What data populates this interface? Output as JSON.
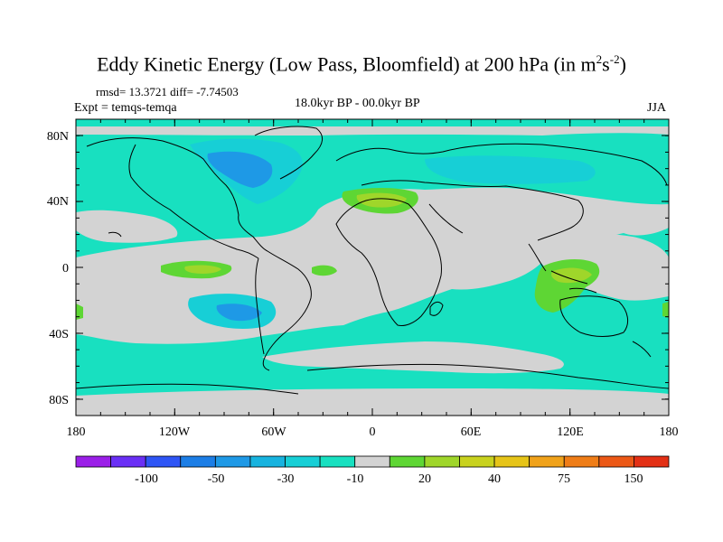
{
  "title": {
    "main": "Eddy Kinetic Energy (Low Pass, Bloomfield) at 200 hPa (in m",
    "sup1": "2",
    "mid": "s",
    "sup2": "-2",
    "end": ")"
  },
  "stats": "rmsd= 13.3721 diff= -7.74503",
  "experiment": "Expt = temqs-temqa",
  "period": "18.0kyr BP - 00.0kyr BP",
  "season": "JJA",
  "y_axis_labels": [
    "80N",
    "40N",
    "0",
    "40S",
    "80S"
  ],
  "x_axis_labels": [
    "180",
    "120W",
    "60W",
    "0",
    "60E",
    "120E",
    "180"
  ],
  "colorbar": {
    "colors": [
      "#9b1fe8",
      "#6a2ff5",
      "#2e55f5",
      "#1c7ee6",
      "#1e99e6",
      "#17b3df",
      "#17cfd6",
      "#18e0c0",
      "#d3d3d3",
      "#5ed634",
      "#9fd62a",
      "#c8d21e",
      "#e6c418",
      "#f0a21a",
      "#ef7d17",
      "#ec5816",
      "#e33015"
    ],
    "labels": [
      "-100",
      "-50",
      "-30",
      "-10",
      "20",
      "40",
      "75",
      "150"
    ]
  },
  "colors": {
    "ocean_base": "#18e0c0",
    "land_neutral": "#d3d3d3",
    "strong_negative": "#1e99e6",
    "moderate_negative": "#17cfd6",
    "positive_green": "#5ed634",
    "positive_yellowgreen": "#9fd62a"
  }
}
